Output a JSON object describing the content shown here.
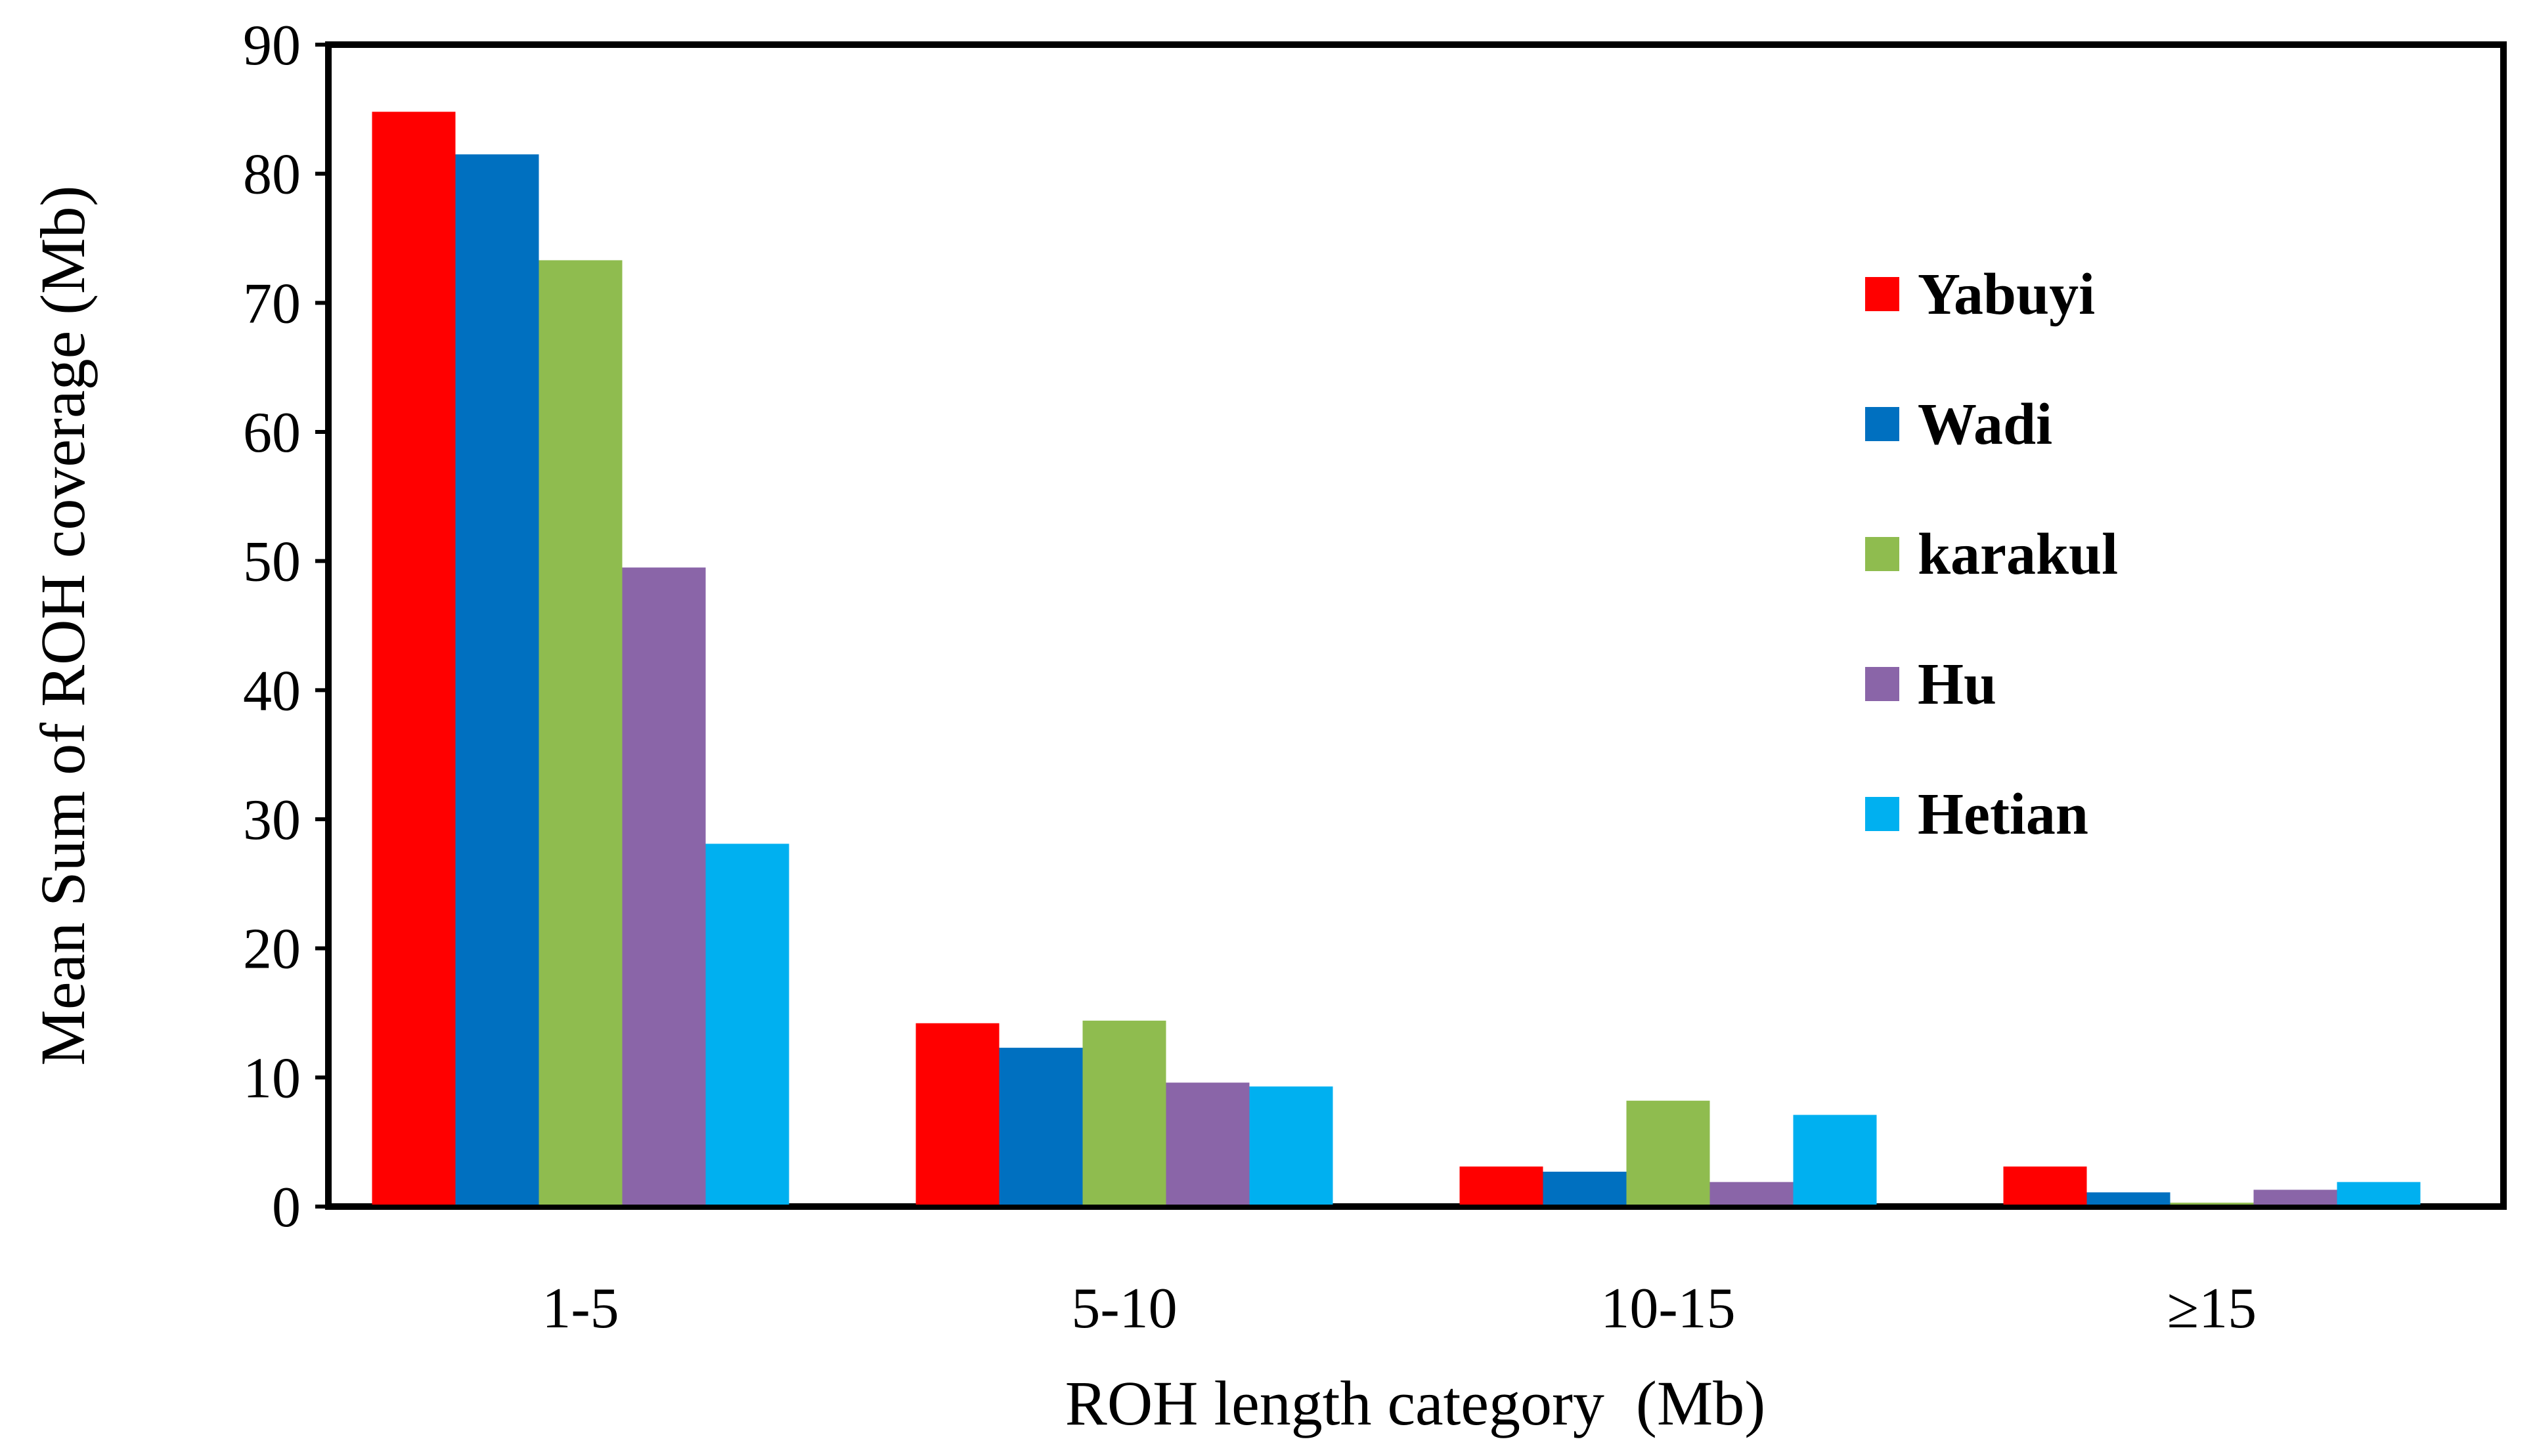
{
  "chart_data": {
    "type": "bar",
    "title": "",
    "xlabel": "ROH length category  (Mb)",
    "ylabel": "Mean Sum of ROH coverage  (Mb)",
    "ylim": [
      0,
      90
    ],
    "yticks": [
      0,
      10,
      20,
      30,
      40,
      50,
      60,
      70,
      80,
      90
    ],
    "ytick_labels": [
      "0",
      "10",
      "20",
      "30",
      "40",
      "50",
      "60",
      "70",
      "80",
      "90"
    ],
    "categories": [
      "1-5",
      "5-10",
      "10-15",
      "≥15"
    ],
    "legend_position": "right",
    "series": [
      {
        "name": "Yabuyi",
        "color": "#ff0000",
        "values": [
          84.8,
          14.2,
          3.1,
          3.1
        ]
      },
      {
        "name": "Wadi",
        "color": "#0070c0",
        "values": [
          81.5,
          12.3,
          2.7,
          1.1
        ]
      },
      {
        "name": "karakul",
        "color": "#8fbc4f",
        "values": [
          73.3,
          14.4,
          8.2,
          0.3
        ]
      },
      {
        "name": "Hu",
        "color": "#8a65a8",
        "values": [
          49.5,
          9.6,
          1.9,
          1.3
        ]
      },
      {
        "name": "Hetian",
        "color": "#00b0f0",
        "values": [
          28.1,
          9.3,
          7.1,
          1.9
        ]
      }
    ]
  }
}
